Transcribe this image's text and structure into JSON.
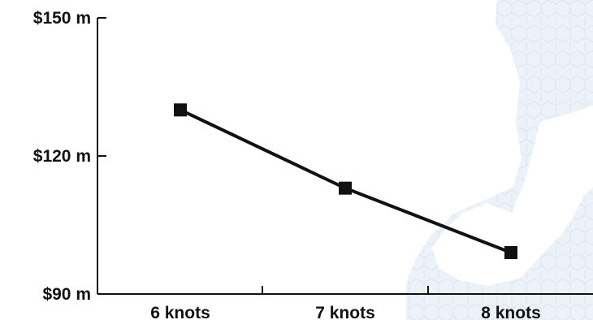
{
  "chart_data": {
    "type": "line",
    "title": "",
    "xlabel": "",
    "ylabel": "",
    "categories": [
      "6 knots",
      "7 knots",
      "8 knots"
    ],
    "series": [
      {
        "values": [
          130,
          113,
          99
        ]
      }
    ],
    "ylim": [
      90,
      150
    ],
    "y_ticks": [
      90,
      120,
      150
    ],
    "y_tick_labels": [
      "$90 m",
      "$120 m",
      "$150 m"
    ],
    "grid": false,
    "legend": "none",
    "marker": "square",
    "colors": {
      "line": "#111111",
      "axis": "#111111",
      "background_pattern": "#dde7f2"
    }
  }
}
